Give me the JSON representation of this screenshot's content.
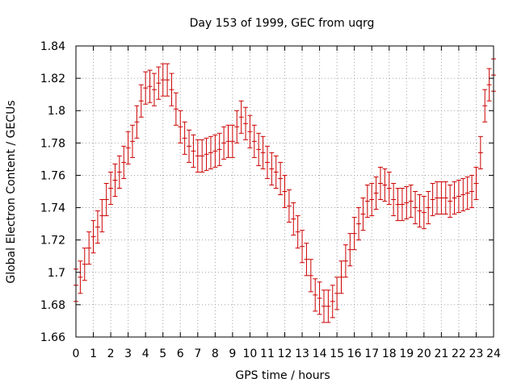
{
  "chart_data": {
    "type": "scatter",
    "title": "Day 153 of 1999, GEC from uqrg",
    "xlabel": "GPS time / hours",
    "ylabel": "Global Electron Content / GECUs",
    "xlim": [
      0,
      24
    ],
    "ylim": [
      1.66,
      1.84
    ],
    "x_ticks": [
      "0",
      "1",
      "2",
      "3",
      "4",
      "5",
      "6",
      "7",
      "8",
      "9",
      "10",
      "11",
      "12",
      "13",
      "14",
      "15",
      "16",
      "17",
      "18",
      "19",
      "20",
      "21",
      "22",
      "23",
      "24"
    ],
    "y_ticks": [
      "1.66",
      "1.68",
      "1.7",
      "1.72",
      "1.74",
      "1.76",
      "1.78",
      "1.8",
      "1.82",
      "1.84"
    ],
    "grid": true,
    "series_color": "#cc0000",
    "error_half_width": 0.01,
    "series": [
      {
        "name": "GEC",
        "points": [
          [
            0.0,
            1.692
          ],
          [
            0.25,
            1.697
          ],
          [
            0.5,
            1.705
          ],
          [
            0.75,
            1.715
          ],
          [
            1.0,
            1.722
          ],
          [
            1.25,
            1.728
          ],
          [
            1.5,
            1.735
          ],
          [
            1.75,
            1.745
          ],
          [
            2.0,
            1.752
          ],
          [
            2.25,
            1.757
          ],
          [
            2.5,
            1.762
          ],
          [
            2.75,
            1.768
          ],
          [
            3.0,
            1.777
          ],
          [
            3.25,
            1.781
          ],
          [
            3.5,
            1.793
          ],
          [
            3.75,
            1.806
          ],
          [
            4.0,
            1.814
          ],
          [
            4.25,
            1.815
          ],
          [
            4.5,
            1.813
          ],
          [
            4.75,
            1.817
          ],
          [
            5.0,
            1.819
          ],
          [
            5.25,
            1.819
          ],
          [
            5.5,
            1.813
          ],
          [
            5.75,
            1.801
          ],
          [
            6.0,
            1.79
          ],
          [
            6.25,
            1.783
          ],
          [
            6.5,
            1.778
          ],
          [
            6.75,
            1.775
          ],
          [
            7.0,
            1.772
          ],
          [
            7.25,
            1.772
          ],
          [
            7.5,
            1.773
          ],
          [
            7.75,
            1.774
          ],
          [
            8.0,
            1.775
          ],
          [
            8.25,
            1.776
          ],
          [
            8.5,
            1.78
          ],
          [
            8.75,
            1.781
          ],
          [
            9.0,
            1.781
          ],
          [
            9.25,
            1.79
          ],
          [
            9.5,
            1.796
          ],
          [
            9.75,
            1.792
          ],
          [
            10.0,
            1.787
          ],
          [
            10.25,
            1.781
          ],
          [
            10.5,
            1.776
          ],
          [
            10.75,
            1.774
          ],
          [
            11.0,
            1.768
          ],
          [
            11.25,
            1.764
          ],
          [
            11.5,
            1.762
          ],
          [
            11.75,
            1.758
          ],
          [
            12.0,
            1.75
          ],
          [
            12.25,
            1.741
          ],
          [
            12.5,
            1.733
          ],
          [
            12.75,
            1.725
          ],
          [
            13.0,
            1.716
          ],
          [
            13.25,
            1.708
          ],
          [
            13.5,
            1.698
          ],
          [
            13.75,
            1.686
          ],
          [
            14.0,
            1.684
          ],
          [
            14.25,
            1.679
          ],
          [
            14.5,
            1.679
          ],
          [
            14.75,
            1.682
          ],
          [
            15.0,
            1.687
          ],
          [
            15.25,
            1.697
          ],
          [
            15.5,
            1.707
          ],
          [
            15.75,
            1.714
          ],
          [
            16.0,
            1.724
          ],
          [
            16.25,
            1.73
          ],
          [
            16.5,
            1.736
          ],
          [
            16.75,
            1.744
          ],
          [
            17.0,
            1.745
          ],
          [
            17.25,
            1.749
          ],
          [
            17.5,
            1.755
          ],
          [
            17.75,
            1.754
          ],
          [
            18.0,
            1.752
          ],
          [
            18.25,
            1.745
          ],
          [
            18.5,
            1.742
          ],
          [
            18.75,
            1.742
          ],
          [
            19.0,
            1.743
          ],
          [
            19.25,
            1.744
          ],
          [
            19.5,
            1.74
          ],
          [
            19.75,
            1.738
          ],
          [
            20.0,
            1.737
          ],
          [
            20.25,
            1.74
          ],
          [
            20.5,
            1.745
          ],
          [
            20.75,
            1.746
          ],
          [
            21.0,
            1.746
          ],
          [
            21.25,
            1.746
          ],
          [
            21.5,
            1.744
          ],
          [
            21.75,
            1.746
          ],
          [
            22.0,
            1.747
          ],
          [
            22.25,
            1.748
          ],
          [
            22.5,
            1.749
          ],
          [
            22.75,
            1.75
          ],
          [
            23.0,
            1.755
          ],
          [
            23.25,
            1.774
          ],
          [
            23.5,
            1.803
          ],
          [
            23.75,
            1.816
          ],
          [
            24.0,
            1.822
          ]
        ]
      }
    ]
  }
}
